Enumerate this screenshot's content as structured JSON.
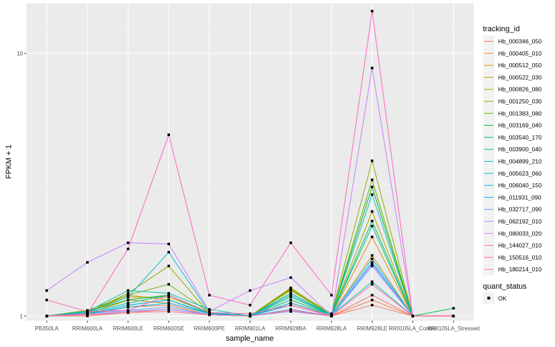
{
  "chart_data": {
    "type": "line",
    "xlabel": "sample_name",
    "ylabel": "FPKM + 1",
    "y_scale": "log10",
    "ylim": [
      0.96,
      15.5
    ],
    "grid": true,
    "legend_position": "right",
    "legend_title": "tracking_id",
    "shape_legend_title": "quant_status",
    "shape_legend_label": "OK",
    "categories": [
      "PB350LA",
      "RRIM600LA",
      "RRIM600LE",
      "RRIM600SE",
      "RRIM600PE",
      "RRIM901LA",
      "RRIM928BA",
      "RRIM928LA",
      "RRIM928LE",
      "RRII105LA_Control",
      "RRII105LA_Stressed"
    ],
    "y_ticks": [
      1,
      10
    ],
    "series": [
      {
        "name": "Hb_000346_050",
        "color": "#F8766D",
        "values": [
          1.0,
          1.0,
          1.03,
          1.06,
          1.01,
          1.0,
          1.05,
          1.0,
          1.1,
          1.0,
          1.0
        ]
      },
      {
        "name": "Hb_000405_010",
        "color": "#EC8239",
        "values": [
          1.0,
          1.01,
          1.08,
          1.1,
          1.01,
          1.0,
          1.12,
          1.0,
          1.15,
          1.0,
          1.0
        ]
      },
      {
        "name": "Hb_000512_050",
        "color": "#DB8E00",
        "values": [
          1.0,
          1.02,
          1.15,
          1.12,
          1.02,
          1.0,
          1.2,
          1.01,
          2.0,
          1.0,
          1.0
        ]
      },
      {
        "name": "Hb_000522_030",
        "color": "#C79800",
        "values": [
          1.0,
          1.03,
          1.2,
          1.15,
          1.02,
          1.0,
          1.25,
          1.01,
          1.7,
          1.0,
          1.0
        ]
      },
      {
        "name": "Hb_000826_080",
        "color": "#AEA200",
        "values": [
          1.0,
          1.04,
          1.18,
          1.18,
          1.03,
          1.0,
          1.28,
          1.01,
          2.5,
          1.0,
          1.0
        ]
      },
      {
        "name": "Hb_001250_030",
        "color": "#8FAA00",
        "values": [
          1.0,
          1.03,
          1.22,
          1.55,
          1.02,
          1.0,
          1.27,
          1.02,
          3.9,
          1.0,
          1.0
        ]
      },
      {
        "name": "Hb_001383_080",
        "color": "#64B200",
        "values": [
          1.0,
          1.05,
          1.2,
          1.32,
          1.03,
          1.0,
          1.26,
          1.01,
          3.3,
          1.0,
          1.0
        ]
      },
      {
        "name": "Hb_003169_040",
        "color": "#00B81B",
        "values": [
          1.0,
          1.04,
          1.15,
          1.2,
          1.03,
          1.0,
          1.22,
          1.01,
          3.1,
          1.0,
          1.0
        ]
      },
      {
        "name": "Hb_003540_170",
        "color": "#00BD5C",
        "values": [
          1.0,
          1.02,
          1.1,
          1.15,
          1.02,
          1.0,
          1.15,
          1.01,
          2.3,
          1.0,
          1.07
        ]
      },
      {
        "name": "Hb_003900_040",
        "color": "#00C08E",
        "values": [
          1.0,
          1.03,
          1.12,
          1.2,
          1.02,
          1.0,
          1.18,
          1.01,
          2.2,
          1.0,
          1.0
        ]
      },
      {
        "name": "Hb_004899_210",
        "color": "#00C1B2",
        "values": [
          1.0,
          1.04,
          1.25,
          1.22,
          1.06,
          1.0,
          1.22,
          1.01,
          1.35,
          1.0,
          1.0
        ]
      },
      {
        "name": "Hb_005623_060",
        "color": "#00BFD0",
        "values": [
          1.0,
          1.03,
          1.18,
          1.75,
          1.03,
          1.0,
          1.2,
          1.01,
          2.9,
          1.0,
          1.0
        ]
      },
      {
        "name": "Hb_006040_150",
        "color": "#00B8E7",
        "values": [
          1.0,
          1.02,
          1.1,
          1.15,
          1.02,
          1.0,
          1.12,
          1.01,
          1.65,
          1.0,
          1.0
        ]
      },
      {
        "name": "Hb_011931_090",
        "color": "#00ABFD",
        "values": [
          1.0,
          1.02,
          1.08,
          1.12,
          1.02,
          1.0,
          1.1,
          1.0,
          1.6,
          1.0,
          1.0
        ]
      },
      {
        "name": "Hb_032717_090",
        "color": "#619CFF",
        "values": [
          1.0,
          1.02,
          1.05,
          1.08,
          1.01,
          1.0,
          1.06,
          1.0,
          1.55,
          1.0,
          1.0
        ]
      },
      {
        "name": "Hb_062192_010",
        "color": "#A58AFF",
        "values": [
          1.0,
          1.01,
          1.04,
          1.06,
          1.01,
          1.0,
          1.04,
          1.0,
          1.58,
          1.0,
          1.0
        ]
      },
      {
        "name": "Hb_080033_020",
        "color": "#C77CFF",
        "values": [
          1.25,
          1.6,
          1.9,
          1.88,
          1.04,
          1.25,
          1.4,
          1.0,
          8.8,
          1.0,
          1.0
        ]
      },
      {
        "name": "Hb_144027_010",
        "color": "#FF61C3",
        "values": [
          1.0,
          1.02,
          1.8,
          4.9,
          1.2,
          1.1,
          1.9,
          1.2,
          14.5,
          1.0,
          1.0
        ]
      },
      {
        "name": "Hb_150516_010",
        "color": "#FF65AC",
        "values": [
          1.15,
          1.04,
          1.05,
          1.2,
          1.03,
          1.02,
          1.1,
          1.0,
          1.32,
          1.0,
          1.0
        ]
      },
      {
        "name": "Hb_180214_010",
        "color": "#FC717F",
        "values": [
          1.0,
          1.01,
          1.03,
          1.04,
          1.01,
          1.0,
          1.05,
          1.0,
          1.2,
          1.0,
          1.0
        ]
      }
    ]
  }
}
